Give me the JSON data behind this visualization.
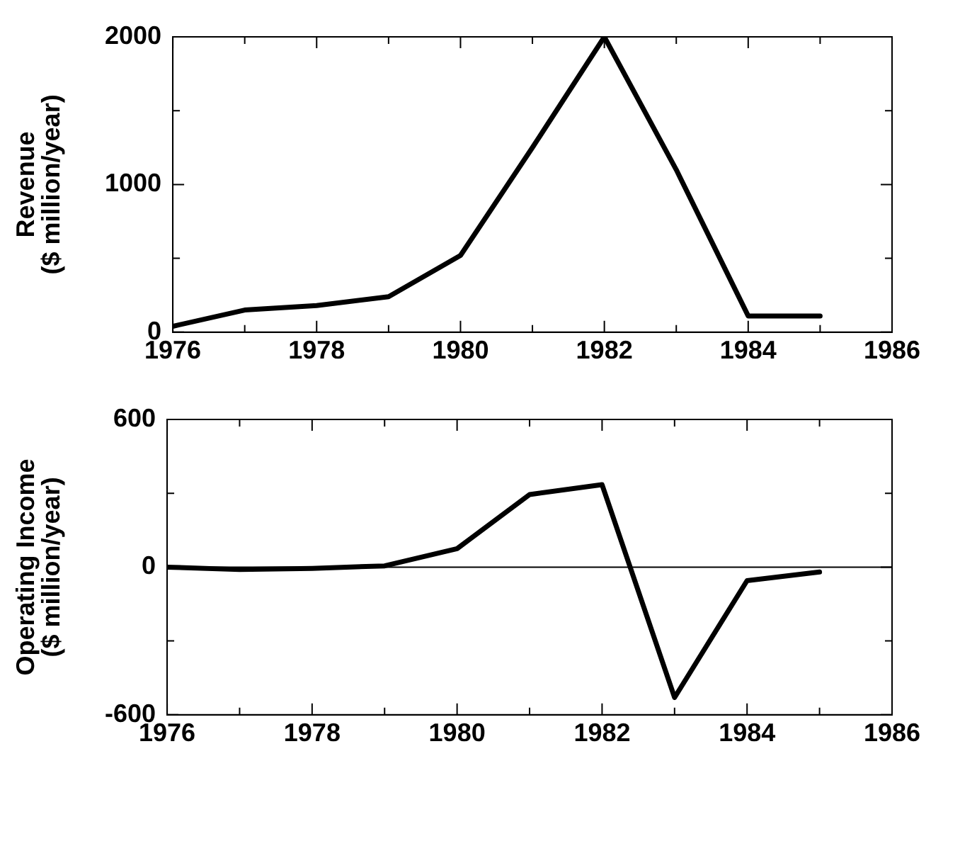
{
  "chart_data": [
    {
      "type": "line",
      "ylabel": "Revenue\n($ million/year)",
      "x": [
        1976,
        1977,
        1978,
        1979,
        1980,
        1981,
        1982,
        1983,
        1984,
        1985
      ],
      "series": [
        {
          "color": "#000000",
          "values": [
            40,
            150,
            180,
            240,
            520,
            1250,
            2000,
            1100,
            110,
            110
          ]
        }
      ],
      "xlim": [
        1976,
        1986
      ],
      "xticks": [
        1976,
        {
          "value": 1977,
          "label": null
        },
        1978,
        {
          "value": 1979,
          "label": null
        },
        1980,
        {
          "value": 1981,
          "label": null
        },
        1982,
        {
          "value": 1983,
          "label": null
        },
        1984,
        {
          "value": 1985,
          "label": null
        },
        1986
      ],
      "ylim": [
        0,
        2000
      ],
      "yticks": [
        0,
        {
          "value": 500,
          "label": null
        },
        1000,
        {
          "value": 1500,
          "label": null
        },
        2000
      ],
      "grid": false,
      "legend": false,
      "marker": "none",
      "line_style": "solid"
    },
    {
      "type": "line",
      "ylabel": "Operating Income\n($ million/year)",
      "x": [
        1976,
        1977,
        1978,
        1979,
        1980,
        1981,
        1982,
        1983,
        1984,
        1985
      ],
      "series": [
        {
          "color": "#000000",
          "values": [
            0,
            -10,
            -5,
            5,
            75,
            295,
            335,
            -530,
            -55,
            -20
          ]
        }
      ],
      "xlim": [
        1976,
        1986
      ],
      "xticks": [
        1976,
        {
          "value": 1977,
          "label": null
        },
        1978,
        {
          "value": 1979,
          "label": null
        },
        1980,
        {
          "value": 1981,
          "label": null
        },
        1982,
        {
          "value": 1983,
          "label": null
        },
        1984,
        {
          "value": 1985,
          "label": null
        },
        1986
      ],
      "ylim": [
        -600,
        600
      ],
      "yticks": [
        -600,
        {
          "value": -300,
          "label": null
        },
        0,
        {
          "value": 300,
          "label": null
        },
        600
      ],
      "ref_lines": [
        {
          "axis": "y",
          "value": 0,
          "color": "#000000"
        }
      ],
      "grid": false,
      "legend": false,
      "marker": "none",
      "line_style": "solid"
    }
  ]
}
